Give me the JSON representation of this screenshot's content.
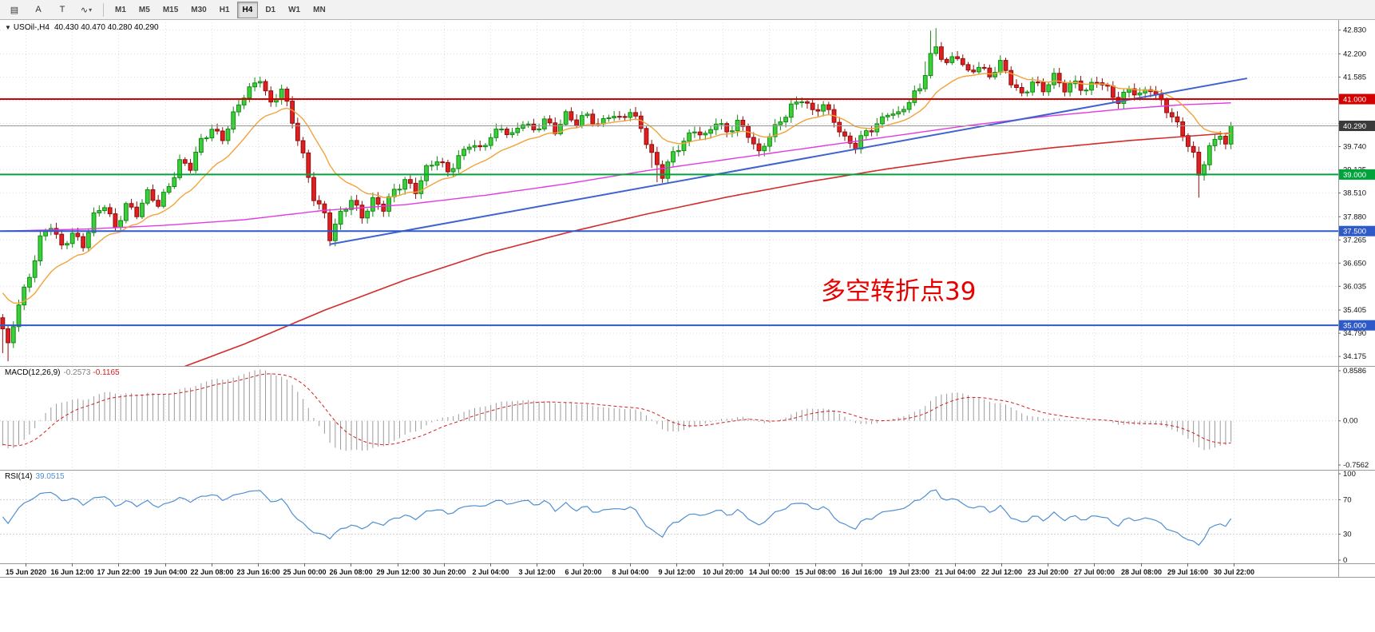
{
  "toolbar": {
    "icons": [
      {
        "name": "chart-list-icon",
        "glyph": "▤"
      },
      {
        "name": "arrow-tool-button",
        "glyph": "A"
      },
      {
        "name": "text-tool-button",
        "glyph": "T"
      },
      {
        "name": "polyline-tool-button",
        "glyph": "∿"
      }
    ],
    "timeframes": [
      {
        "label": "M1"
      },
      {
        "label": "M5"
      },
      {
        "label": "M15"
      },
      {
        "label": "M30"
      },
      {
        "label": "H1"
      },
      {
        "label": "H4"
      },
      {
        "label": "D1"
      },
      {
        "label": "W1"
      },
      {
        "label": "MN"
      }
    ],
    "active_timeframe": "H4"
  },
  "chart": {
    "header": {
      "dropdown": "▼",
      "symbol": "USOil-,H4",
      "ohlc": "40.430 40.470 40.280 40.290"
    }
  },
  "chart_data": {
    "type": "candlestick+indicators",
    "symbol": "USOil",
    "timeframe": "H4",
    "price_axis": {
      "min": 34.05,
      "max": 42.95,
      "ticks": [
        "42.830",
        "42.200",
        "41.585",
        "40.970",
        "40.355",
        "39.740",
        "39.125",
        "38.510",
        "37.880",
        "37.265",
        "36.650",
        "36.035",
        "35.405",
        "34.790",
        "34.175"
      ]
    },
    "levels": [
      {
        "price": 41.0,
        "label": "41.000",
        "color": "#d40000",
        "width": 2
      },
      {
        "price": 39.0,
        "label": "39.000",
        "color": "#00a23c",
        "width": 2
      },
      {
        "price": 37.5,
        "label": "37.500",
        "color": "#2e59c8",
        "width": 2
      },
      {
        "price": 35.0,
        "label": "35.000",
        "color": "#2e59c8",
        "width": 2
      }
    ],
    "current_price": {
      "value": 40.29,
      "label": "40.290",
      "line_color": "#999999",
      "box_color": "#3a3a3a"
    },
    "trendline": {
      "from_index": 61,
      "from_price": 37.15,
      "to_index": 232,
      "to_price": 41.55,
      "color": "#3f63cf",
      "width": 2
    },
    "candles": {
      "count": 230,
      "up_fill": "#3bcf3b",
      "up_stroke": "#128a12",
      "down_fill": "#e02020",
      "down_stroke": "#8f0d0d",
      "last_close": 40.29,
      "close_anchors": [
        [
          0,
          34.85
        ],
        [
          1,
          34.4
        ],
        [
          3,
          35.6
        ],
        [
          5,
          36.35
        ],
        [
          7,
          37.3
        ],
        [
          9,
          37.6
        ],
        [
          11,
          37.05
        ],
        [
          13,
          37.5
        ],
        [
          15,
          37.15
        ],
        [
          17,
          37.85
        ],
        [
          19,
          38.15
        ],
        [
          21,
          37.6
        ],
        [
          23,
          38.25
        ],
        [
          25,
          37.95
        ],
        [
          27,
          38.45
        ],
        [
          29,
          38.2
        ],
        [
          31,
          38.75
        ],
        [
          33,
          39.35
        ],
        [
          35,
          39.15
        ],
        [
          37,
          39.85
        ],
        [
          39,
          40.25
        ],
        [
          41,
          40.0
        ],
        [
          43,
          40.55
        ],
        [
          45,
          41.05
        ],
        [
          47,
          41.4
        ],
        [
          48,
          41.6
        ],
        [
          50,
          40.9
        ],
        [
          52,
          41.25
        ],
        [
          54,
          40.35
        ],
        [
          56,
          39.5
        ],
        [
          58,
          38.45
        ],
        [
          60,
          37.95
        ],
        [
          61,
          37.3
        ],
        [
          63,
          37.9
        ],
        [
          65,
          38.35
        ],
        [
          67,
          37.95
        ],
        [
          69,
          38.3
        ],
        [
          71,
          38.05
        ],
        [
          73,
          38.55
        ],
        [
          75,
          38.9
        ],
        [
          77,
          38.6
        ],
        [
          79,
          39.1
        ],
        [
          81,
          39.35
        ],
        [
          83,
          39.1
        ],
        [
          85,
          39.5
        ],
        [
          87,
          39.8
        ],
        [
          89,
          39.6
        ],
        [
          91,
          40.0
        ],
        [
          93,
          40.3
        ],
        [
          95,
          40.05
        ],
        [
          97,
          40.35
        ],
        [
          99,
          40.1
        ],
        [
          101,
          40.5
        ],
        [
          103,
          40.2
        ],
        [
          105,
          40.55
        ],
        [
          107,
          40.3
        ],
        [
          109,
          40.6
        ],
        [
          111,
          40.35
        ],
        [
          113,
          40.6
        ],
        [
          115,
          40.4
        ],
        [
          117,
          40.65
        ],
        [
          119,
          40.3
        ],
        [
          121,
          39.55
        ],
        [
          123,
          38.95
        ],
        [
          125,
          39.5
        ],
        [
          127,
          39.9
        ],
        [
          129,
          40.25
        ],
        [
          131,
          40.0
        ],
        [
          133,
          40.35
        ],
        [
          135,
          40.1
        ],
        [
          137,
          40.45
        ],
        [
          139,
          40.1
        ],
        [
          141,
          39.5
        ],
        [
          143,
          40.0
        ],
        [
          145,
          40.45
        ],
        [
          147,
          40.85
        ],
        [
          149,
          41.0
        ],
        [
          151,
          40.6
        ],
        [
          153,
          40.85
        ],
        [
          155,
          40.5
        ],
        [
          157,
          39.95
        ],
        [
          159,
          39.7
        ],
        [
          161,
          40.1
        ],
        [
          163,
          40.35
        ],
        [
          165,
          40.7
        ],
        [
          167,
          40.55
        ],
        [
          169,
          40.9
        ],
        [
          171,
          41.3
        ],
        [
          173,
          42.2
        ],
        [
          174,
          42.4
        ],
        [
          176,
          41.9
        ],
        [
          178,
          42.1
        ],
        [
          180,
          41.7
        ],
        [
          182,
          41.95
        ],
        [
          184,
          41.6
        ],
        [
          186,
          41.9
        ],
        [
          188,
          41.45
        ],
        [
          190,
          41.15
        ],
        [
          192,
          41.5
        ],
        [
          194,
          41.2
        ],
        [
          196,
          41.55
        ],
        [
          198,
          41.3
        ],
        [
          200,
          41.5
        ],
        [
          202,
          41.2
        ],
        [
          204,
          41.45
        ],
        [
          206,
          41.25
        ],
        [
          208,
          41.0
        ],
        [
          210,
          41.3
        ],
        [
          212,
          41.05
        ],
        [
          214,
          41.25
        ],
        [
          216,
          40.95
        ],
        [
          218,
          40.6
        ],
        [
          220,
          40.05
        ],
        [
          222,
          39.45
        ],
        [
          223,
          38.95
        ],
        [
          225,
          39.75
        ],
        [
          227,
          40.15
        ],
        [
          228,
          39.8
        ],
        [
          229,
          40.29
        ]
      ],
      "high_spikes": [
        [
          172,
          0.3
        ],
        [
          173,
          0.5
        ],
        [
          174,
          0.35
        ]
      ],
      "low_spikes": [
        [
          0,
          0.5
        ],
        [
          1,
          0.35
        ],
        [
          121,
          0.3
        ],
        [
          122,
          0.35
        ],
        [
          223,
          0.45
        ]
      ]
    },
    "moving_averages": {
      "fast": {
        "color": "#f2a33c",
        "type": "ema",
        "alpha": 0.13,
        "init": 36.0
      },
      "medium": {
        "color": "#e13ce1",
        "anchors": [
          [
            0,
            37.5
          ],
          [
            15,
            37.55
          ],
          [
            30,
            37.65
          ],
          [
            45,
            37.8
          ],
          [
            60,
            38.05
          ],
          [
            75,
            38.2
          ],
          [
            90,
            38.45
          ],
          [
            105,
            38.75
          ],
          [
            120,
            39.1
          ],
          [
            135,
            39.4
          ],
          [
            150,
            39.7
          ],
          [
            165,
            40.0
          ],
          [
            180,
            40.3
          ],
          [
            195,
            40.55
          ],
          [
            210,
            40.75
          ],
          [
            220,
            40.85
          ],
          [
            229,
            40.9
          ]
        ]
      },
      "slow": {
        "color": "#d42a2a",
        "anchors": [
          [
            0,
            32.0
          ],
          [
            30,
            33.7
          ],
          [
            45,
            34.5
          ],
          [
            60,
            35.4
          ],
          [
            75,
            36.2
          ],
          [
            90,
            36.9
          ],
          [
            105,
            37.45
          ],
          [
            120,
            37.95
          ],
          [
            135,
            38.4
          ],
          [
            150,
            38.8
          ],
          [
            165,
            39.15
          ],
          [
            180,
            39.45
          ],
          [
            195,
            39.7
          ],
          [
            210,
            39.9
          ],
          [
            229,
            40.1
          ]
        ]
      }
    },
    "macd": {
      "label": "MACD(12,26,9)",
      "value_main": "-0.2573",
      "value_signal": "-0.1165",
      "axis": {
        "max": 0.8586,
        "min": -0.7562,
        "ticks": [
          "0.8586",
          "0.00",
          "-0.7562"
        ]
      },
      "hist_color": "#9a9a9a",
      "signal_color": "#d02020",
      "init_fast": 35.6,
      "init_slow": 36.0
    },
    "rsi": {
      "label": "RSI(14)",
      "value": "39.0515",
      "color": "#4f8fd0",
      "axis": {
        "ticks": [
          "100",
          "70",
          "30",
          "0"
        ],
        "levels": [
          70,
          30
        ]
      }
    },
    "time_axis": {
      "labels": [
        "15 Jun 2020",
        "16 Jun 12:00",
        "17 Jun 22:00",
        "19 Jun 04:00",
        "22 Jun 08:00",
        "23 Jun 16:00",
        "25 Jun 00:00",
        "26 Jun 08:00",
        "29 Jun 12:00",
        "30 Jun 20:00",
        "2 Jul 04:00",
        "3 Jul 12:00",
        "6 Jul 20:00",
        "8 Jul 04:00",
        "9 Jul 12:00",
        "10 Jul 20:00",
        "14 Jul 00:00",
        "15 Jul 08:00",
        "16 Jul 16:00",
        "19 Jul 23:00",
        "21 Jul 04:00",
        "22 Jul 12:00",
        "23 Jul 20:00",
        "27 Jul 00:00",
        "28 Jul 08:00",
        "29 Jul 16:00",
        "30 Jul 22:00"
      ]
    },
    "annotation": {
      "text": "多空转折点39",
      "color": "#e60000"
    }
  }
}
